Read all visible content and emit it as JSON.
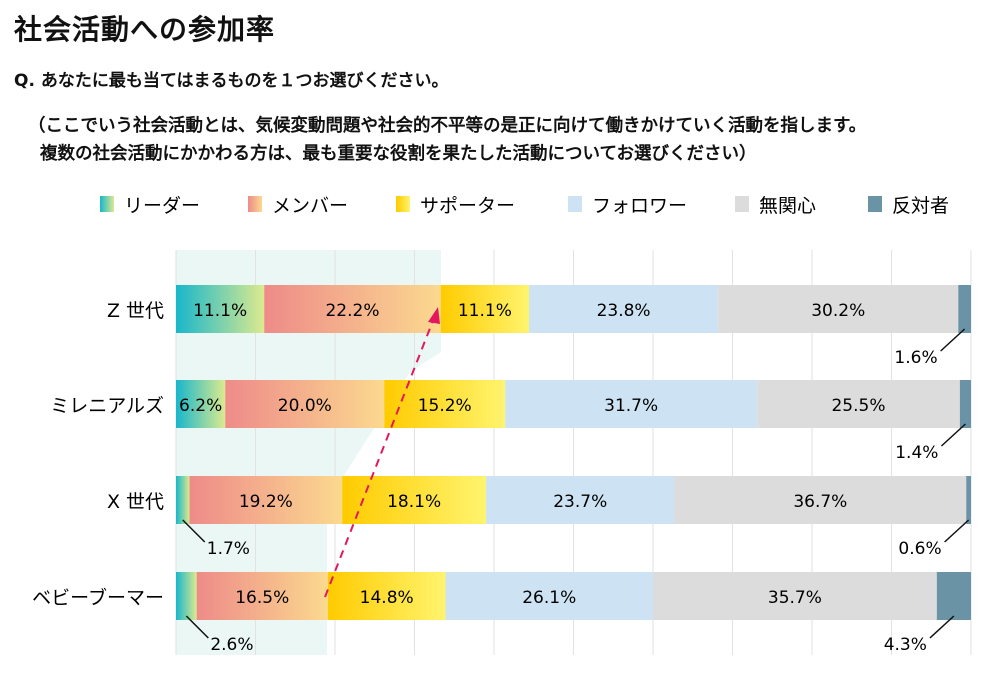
{
  "title": "社会活動への参加率",
  "question": "Q. あなたに最も当てはまるものを１つお選びください。",
  "note_lines": [
    "（ここでいう社会活動とは、気候変動問題や社会的不平等の是正に向けて働きかけていく活動を指します。",
    "複数の社会活動にかかわる方は、最も重要な役割を果たした活動についてお選びください）"
  ],
  "chart_data": {
    "type": "bar",
    "orientation": "horizontal",
    "stacked": true,
    "title": "社会活動への参加率",
    "categories": [
      "Z 世代",
      "ミレニアルズ",
      "X 世代",
      "ベビーブーマー"
    ],
    "series": [
      {
        "name": "リーダー",
        "values": [
          11.1,
          6.2,
          1.7,
          2.6
        ],
        "colors": [
          "#18b7cb",
          "#dcea8e"
        ]
      },
      {
        "name": "メンバー",
        "values": [
          22.2,
          20.0,
          19.2,
          16.5
        ],
        "colors": [
          "#ee8b89",
          "#fbd98f"
        ]
      },
      {
        "name": "サポーター",
        "values": [
          11.1,
          15.2,
          18.1,
          14.8
        ],
        "colors": [
          "#ffcb00",
          "#fff46e"
        ]
      },
      {
        "name": "フォロワー",
        "values": [
          23.8,
          31.7,
          23.7,
          26.1
        ],
        "colors": [
          "#cde3f3",
          "#cde3f3"
        ]
      },
      {
        "name": "無関心",
        "values": [
          30.2,
          25.5,
          36.7,
          35.7
        ],
        "colors": [
          "#dcdcdc",
          "#dcdcdc"
        ]
      },
      {
        "name": "反対者",
        "values": [
          1.6,
          1.4,
          0.6,
          4.3
        ],
        "colors": [
          "#6b93a6",
          "#6b93a6"
        ]
      }
    ],
    "xlim": [
      0,
      100
    ],
    "grid": true,
    "legend": "top",
    "value_suffix": "%",
    "annotation": "dashed arrow from ベビーブーマー leader+member to Z 世代 leader+member",
    "accent_color": "#e3175f"
  }
}
